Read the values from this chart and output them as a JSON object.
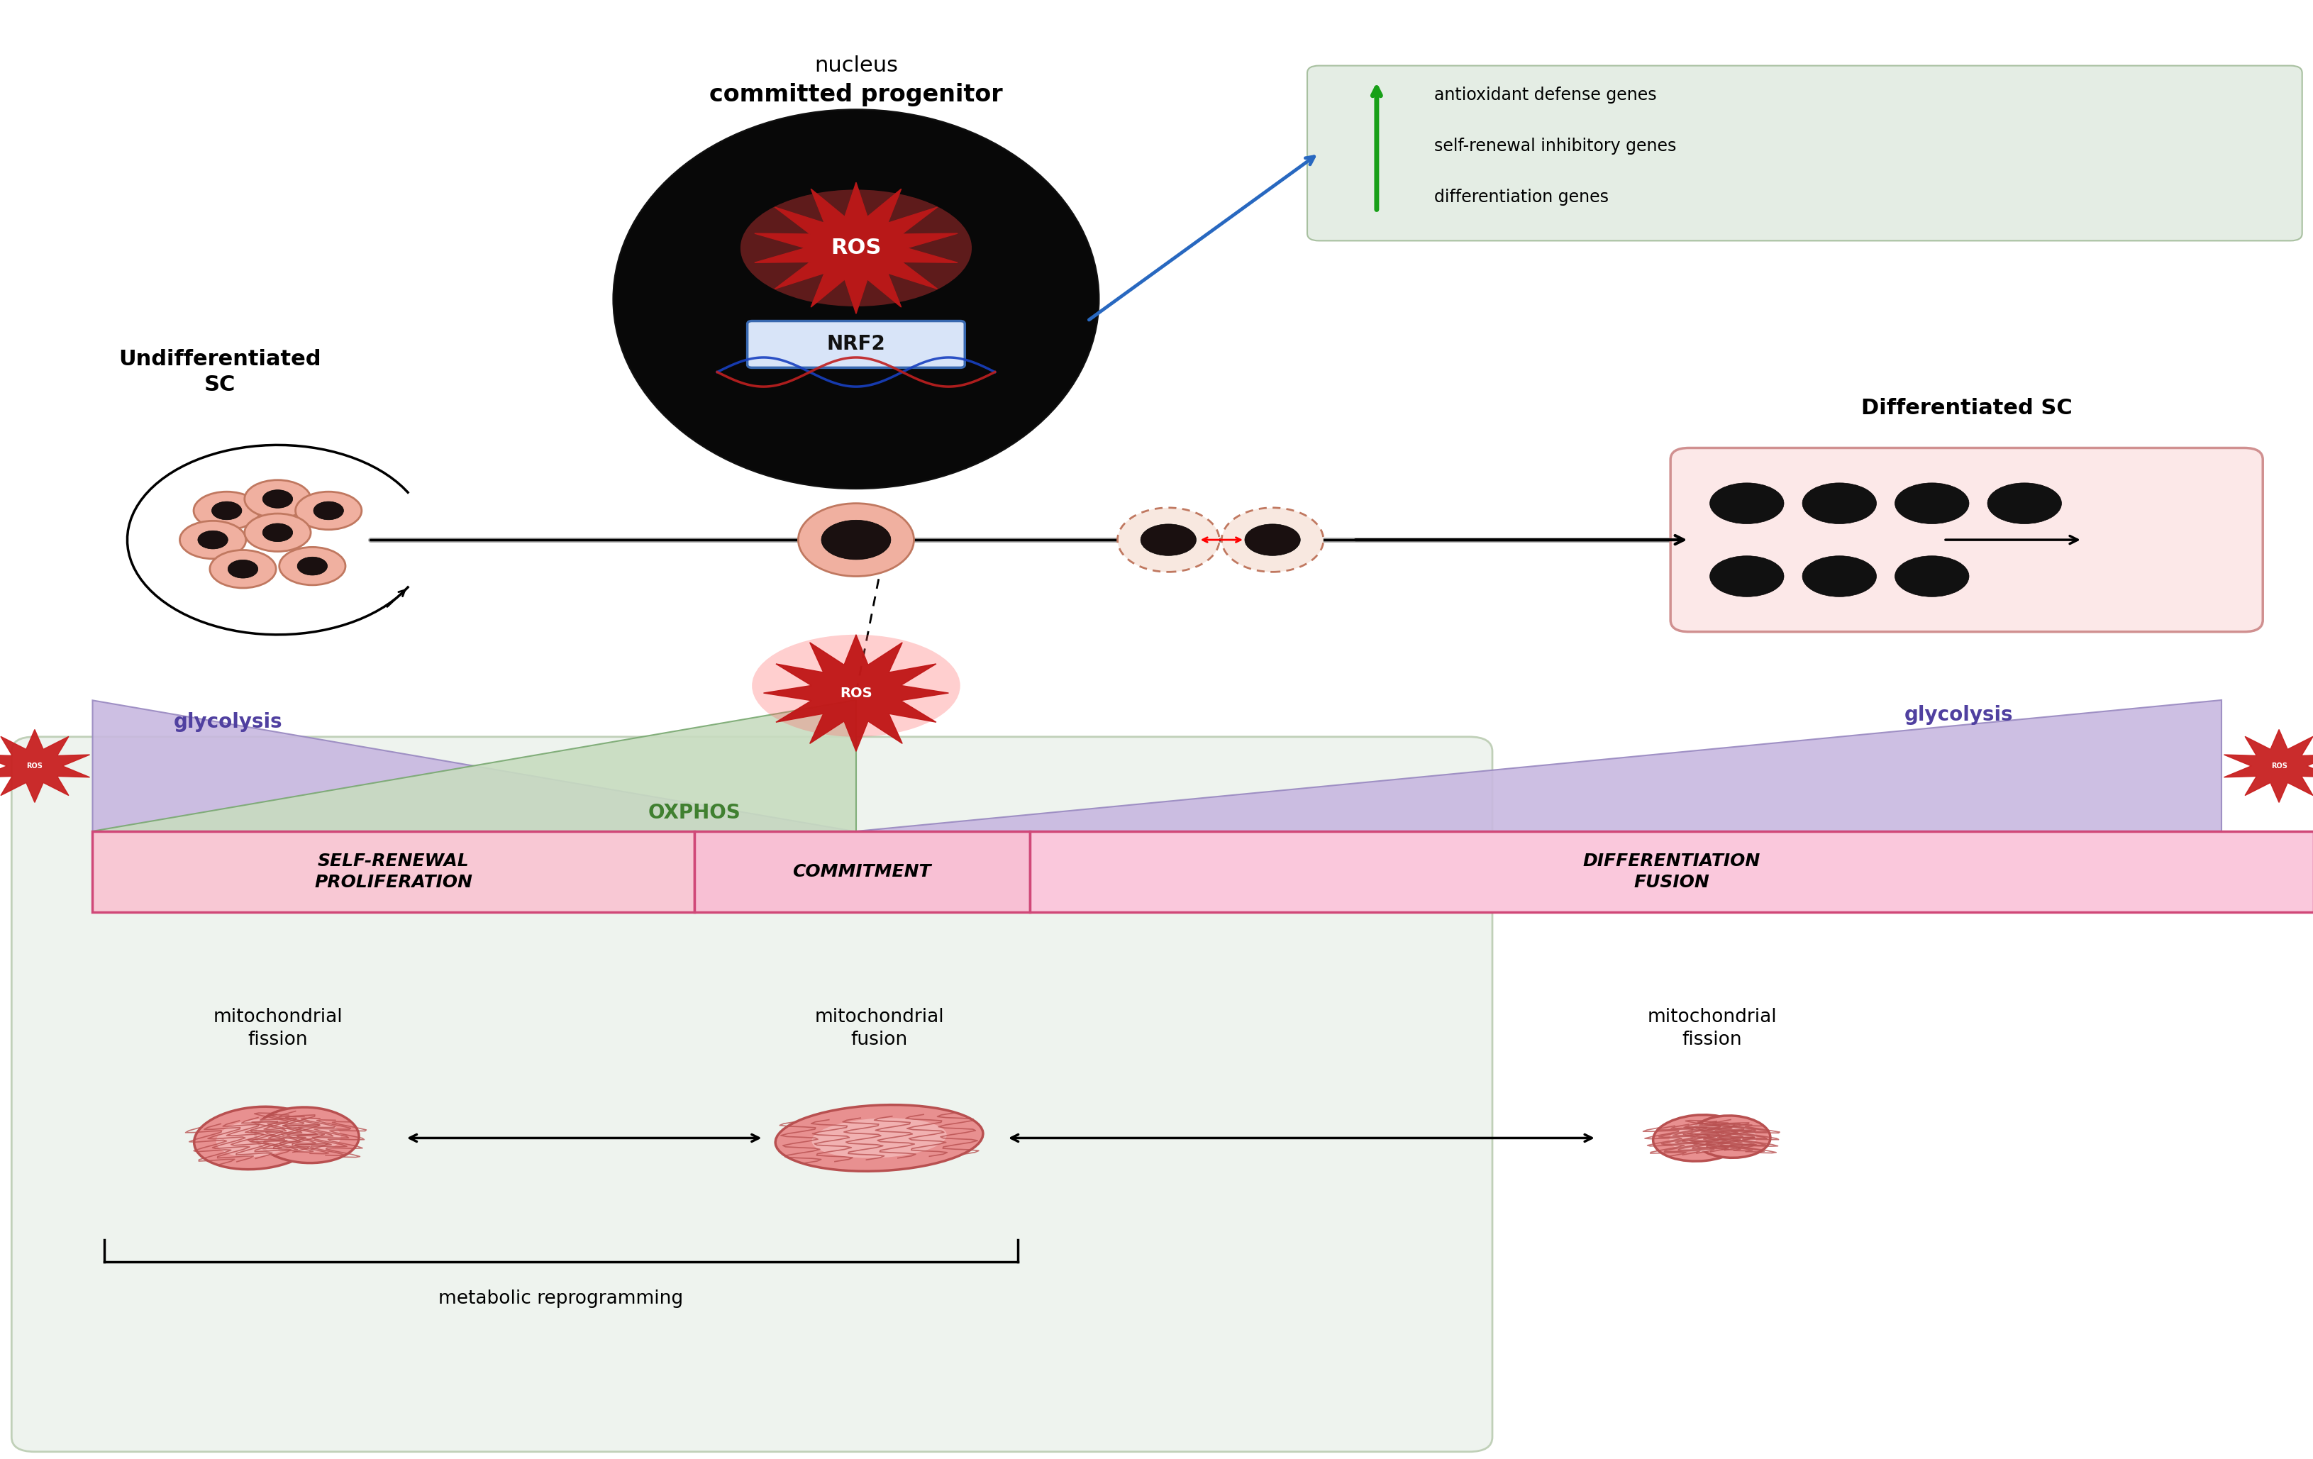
{
  "bg_color": "#ffffff",
  "green_bg_color": "#eef3ee",
  "green_bg_edge": "#c0d0b8",
  "gene_box_color": "#e4ede4",
  "gene_box_edge": "#a8c0a0",
  "pink_sr": "#f8c8d4",
  "pink_com": "#f8c0d4",
  "pink_diff": "#fac8dc",
  "pink_edge": "#d04878",
  "purple_tri": "#c8b8e0",
  "purple_tri_edge": "#9888c0",
  "green_tri": "#c8dcc0",
  "green_tri_edge": "#78a870",
  "diff_sc_box": "#fce8e8",
  "diff_sc_edge": "#d09090",
  "cell_outer": "#f0b0a0",
  "cell_outer_edge": "#c07860",
  "cell_inner": "#1a1010",
  "nucleus_black": "#080808",
  "nrf2_box_fill": "#d8e4f8",
  "nrf2_box_edge": "#3868b0",
  "mito_fill": "#e89090",
  "mito_edge": "#b85050",
  "mito_inner": "#f8c8c8",
  "timeline_color": "#888888",
  "text_purple": "#5040a0",
  "text_green_oxphos": "#408030",
  "nucleus_label": "nucleus",
  "committed_label": "committed progenitor",
  "undiff_label": "Undifferentiated\nSC",
  "diff_label": "Differentiated SC",
  "nrf2_label": "NRF2",
  "oxphos_label": "OXPHOS",
  "glycolysis_label": "glycolysis",
  "antioxidant_text": "antioxidant defense genes",
  "self_renewal_inhibitory": "self-renewal inhibitory genes",
  "differentiation_genes": "differentiation genes",
  "self_renewal_box": "SELF-RENEWAL\nPROLIFERATION",
  "commitment_box": "COMMITMENT",
  "differentiation_box": "DIFFERENTIATION\nFUSION",
  "mito_fission1": "mitochondrial\nfission",
  "mito_fusion": "mitochondrial\nfusion",
  "mito_fission2": "mitochondrial\nfission",
  "metabolic_reprog": "metabolic reprogramming",
  "figw": 32.62,
  "figh": 20.57
}
